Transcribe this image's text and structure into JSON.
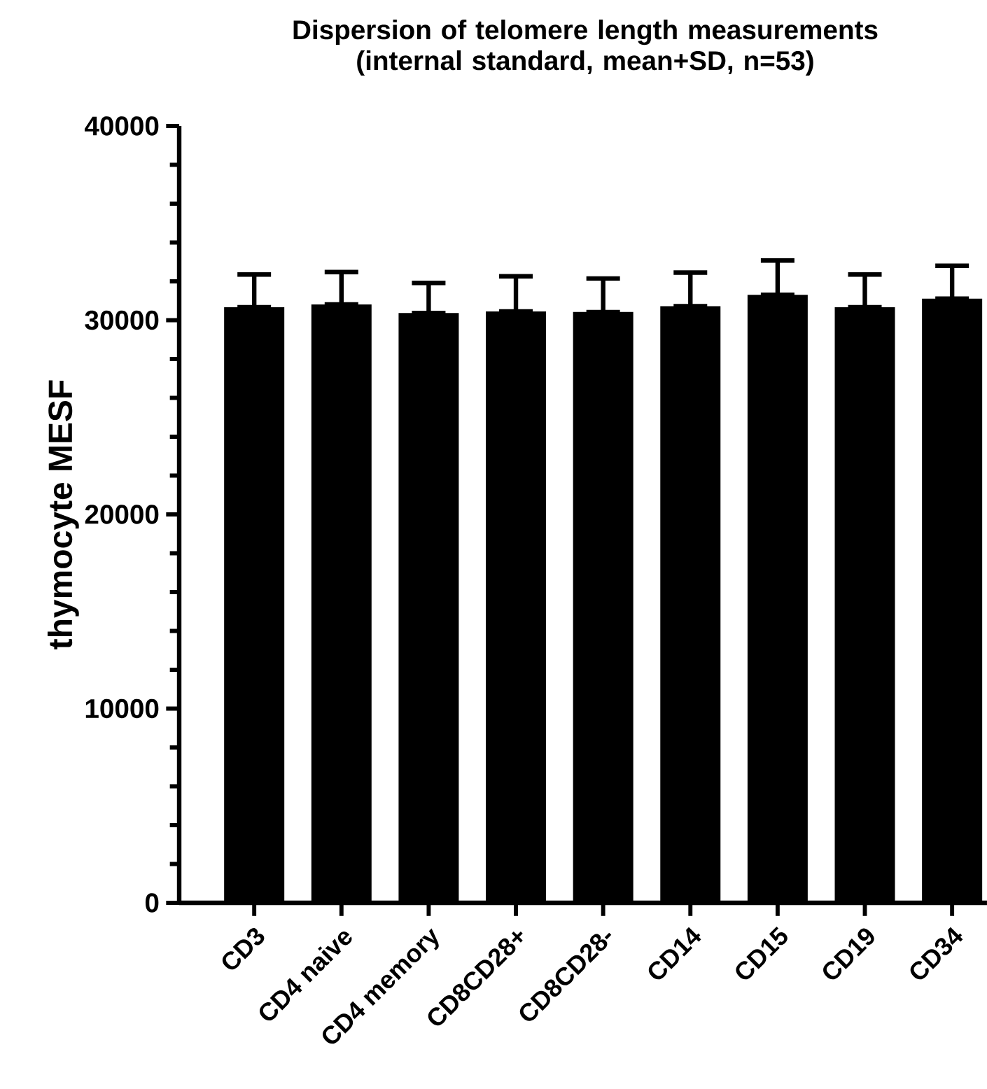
{
  "chart_data": {
    "type": "bar",
    "title": "Dispersion of telomere length measurements\n(internal standard, mean+SD, n=53)",
    "ylabel": "thymocyte MESF",
    "categories": [
      "CD3",
      "CD4 naive",
      "CD4 memory",
      "CD8CD28+",
      "CD8CD28-",
      "CD14",
      "CD15",
      "CD19",
      "CD34"
    ],
    "values": [
      30670,
      30810,
      30370,
      30450,
      30420,
      30720,
      31310,
      30670,
      31110
    ],
    "errors": [
      [
        30670,
        32350
      ],
      [
        30810,
        32480
      ],
      [
        30370,
        31920
      ],
      [
        30450,
        32260
      ],
      [
        30420,
        32150
      ],
      [
        30720,
        32450
      ],
      [
        31310,
        33070
      ],
      [
        30670,
        32350
      ],
      [
        31110,
        32800
      ]
    ],
    "color": "#000000",
    "ylim": [
      0,
      40000
    ],
    "yticks": [
      0,
      10000,
      20000,
      30000,
      40000
    ],
    "grid": false
  }
}
